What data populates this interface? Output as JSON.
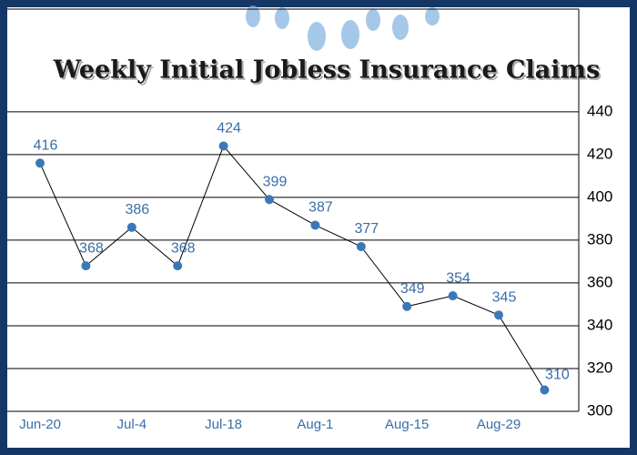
{
  "chart_data": {
    "type": "line",
    "title": "Weekly Initial Jobless Insurance Claims",
    "categories": [
      "Jun-20",
      null,
      "Jul-4",
      null,
      "Jul-18",
      null,
      "Aug-1",
      null,
      "Aug-15",
      null,
      "Aug-29",
      null
    ],
    "values": [
      416,
      368,
      386,
      368,
      424,
      399,
      387,
      377,
      349,
      354,
      345,
      310
    ],
    "color": "#3a78b8",
    "ylim": [
      300,
      488
    ],
    "yticks": [
      300,
      320,
      340,
      360,
      380,
      400,
      420,
      440
    ],
    "grid": true
  }
}
